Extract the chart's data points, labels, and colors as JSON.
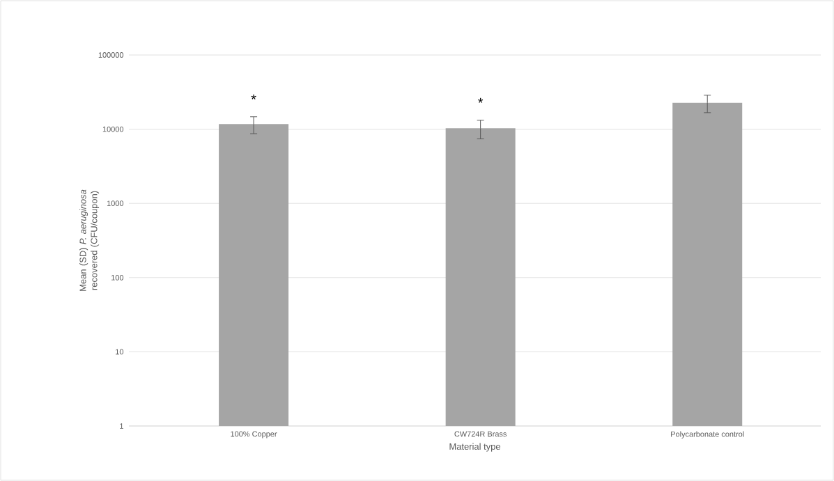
{
  "chart_data": {
    "type": "bar",
    "xlabel": "Material type",
    "ylabel": "Mean (SD) *P. aeruginosa* recovered (CFU/coupon)",
    "categories": [
      "100% Copper",
      "CW724R Brass",
      "Polycarbonate control"
    ],
    "values": [
      11700,
      10300,
      22700
    ],
    "errors": [
      3000,
      2900,
      6000
    ],
    "color": "#a5a5a5",
    "log": "y",
    "ylim": [
      1,
      100000
    ],
    "yticks": [
      1,
      10,
      100,
      1000,
      10000,
      100000
    ],
    "grid": "y",
    "annotations": [
      "*",
      "*"
    ]
  }
}
